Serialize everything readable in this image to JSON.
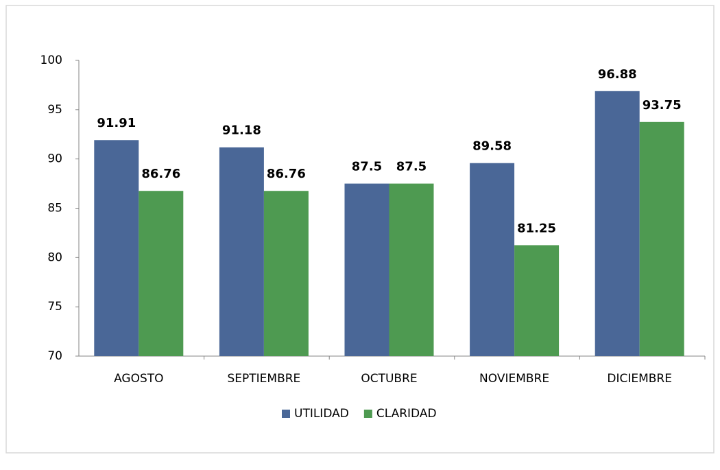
{
  "chart_data": {
    "type": "bar",
    "categories": [
      "AGOSTO",
      "SEPTIEMBRE",
      "OCTUBRE",
      "NOVIEMBRE",
      "DICIEMBRE"
    ],
    "series": [
      {
        "name": "UTILIDAD",
        "color": "#4a6797",
        "values": [
          91.91,
          91.18,
          87.5,
          89.58,
          96.88
        ]
      },
      {
        "name": "CLARIDAD",
        "color": "#4e9a51",
        "values": [
          86.76,
          86.76,
          87.5,
          81.25,
          93.75
        ]
      }
    ],
    "ylim": [
      70,
      100
    ],
    "yticks": [
      70,
      75,
      80,
      85,
      90,
      95,
      100
    ],
    "grid": false,
    "legend": "bottom"
  }
}
